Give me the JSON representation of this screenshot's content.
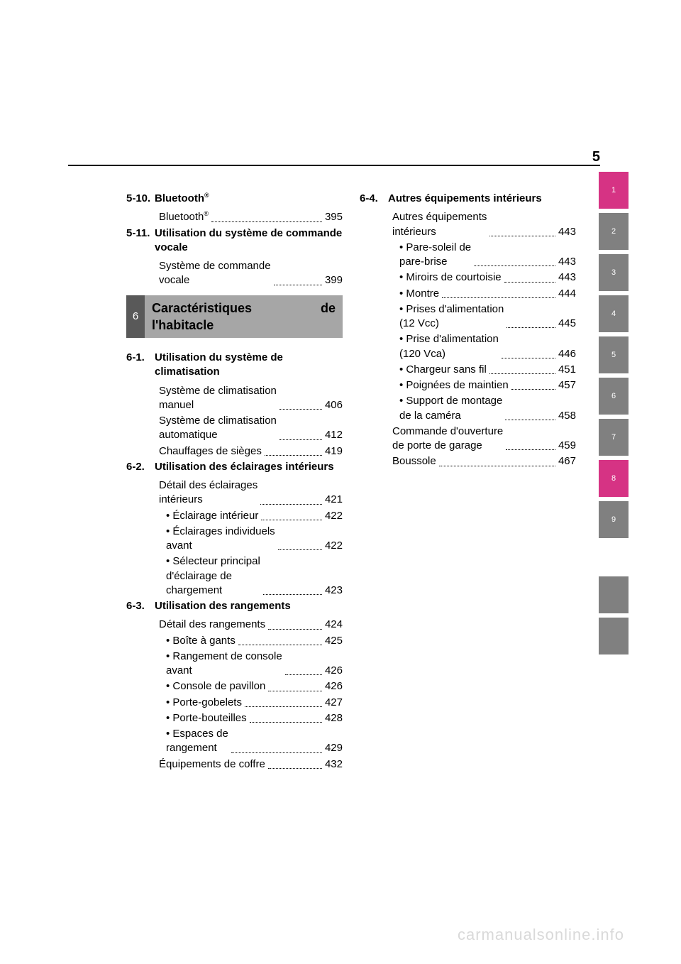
{
  "page_number": "5",
  "watermark": "carmanualsonline.info",
  "tabs": [
    {
      "label": "1",
      "style": "m"
    },
    {
      "label": "2",
      "style": "g"
    },
    {
      "label": "3",
      "style": "g"
    },
    {
      "label": "4",
      "style": "g"
    },
    {
      "label": "5",
      "style": "g"
    },
    {
      "label": "6",
      "style": "g"
    },
    {
      "label": "7",
      "style": "g"
    },
    {
      "label": "8",
      "style": "m"
    },
    {
      "label": "9",
      "style": "g"
    }
  ],
  "col1": {
    "s510": {
      "num": "5-10.",
      "title_a": "Bluetooth",
      "sup": "®"
    },
    "s510_e": [
      {
        "text_a": "Bluetooth",
        "sup": "®",
        "page": "395"
      }
    ],
    "s511": {
      "num": "5-11.",
      "title": "Utilisation du système de commande vocale"
    },
    "s511_e": [
      {
        "text": "Système de commande\nvocale",
        "page": "399"
      }
    ],
    "chapter6": {
      "num": "6",
      "title_a": "Caractéristiques",
      "title_b": "de",
      "title_c": "l'habitacle"
    },
    "s61": {
      "num": "6-1.",
      "title": "Utilisation du système de climatisation"
    },
    "s61_e": [
      {
        "text": "Système de climatisation\nmanuel",
        "page": "406"
      },
      {
        "text": "Système de climatisation\nautomatique",
        "page": "412"
      },
      {
        "text": "Chauffages de sièges",
        "page": "419"
      }
    ],
    "s62": {
      "num": "6-2.",
      "title": "Utilisation des éclairages intérieurs"
    },
    "s62_e": [
      {
        "text": "Détail des éclairages\nintérieurs",
        "page": "421"
      },
      {
        "text": "• Éclairage intérieur",
        "page": "422",
        "l2": true
      },
      {
        "text": "• Éclairages individuels\navant",
        "page": "422",
        "l2": true
      },
      {
        "text": "• Sélecteur principal\nd'éclairage de\nchargement",
        "page": "423",
        "l2": true
      }
    ],
    "s63": {
      "num": "6-3.",
      "title": "Utilisation des rangements"
    },
    "s63_e": [
      {
        "text": "Détail des rangements",
        "page": "424"
      },
      {
        "text": "• Boîte à gants",
        "page": "425",
        "l2": true
      },
      {
        "text": "• Rangement de console\navant",
        "page": "426",
        "l2": true
      },
      {
        "text": "• Console de pavillon",
        "page": "426",
        "l2": true
      },
      {
        "text": "• Porte-gobelets",
        "page": "427",
        "l2": true
      },
      {
        "text": "• Porte-bouteilles",
        "page": "428",
        "l2": true
      },
      {
        "text": "• Espaces de\nrangement",
        "page": "429",
        "l2": true
      },
      {
        "text": "Équipements de coffre",
        "page": "432"
      }
    ]
  },
  "col2": {
    "s64": {
      "num": "6-4.",
      "title": "Autres équipements intérieurs"
    },
    "s64_e": [
      {
        "text": "Autres équipements\nintérieurs",
        "page": "443"
      },
      {
        "text": "• Pare-soleil de\npare-brise",
        "page": "443",
        "l2": true
      },
      {
        "text": "• Miroirs de courtoisie",
        "page": "443",
        "l2": true
      },
      {
        "text": "• Montre",
        "page": "444",
        "l2": true
      },
      {
        "text": "• Prises d'alimentation\n(12 Vcc)",
        "page": "445",
        "l2": true
      },
      {
        "text": "• Prise d'alimentation\n(120 Vca)",
        "page": "446",
        "l2": true
      },
      {
        "text": "• Chargeur sans fil",
        "page": "451",
        "l2": true
      },
      {
        "text": "• Poignées de maintien",
        "page": "457",
        "l2": true
      },
      {
        "text": "• Support de montage\nde la caméra",
        "page": "458",
        "l2": true
      },
      {
        "text": "Commande d'ouverture\nde porte de garage",
        "page": "459"
      },
      {
        "text": "Boussole",
        "page": "467"
      }
    ]
  }
}
